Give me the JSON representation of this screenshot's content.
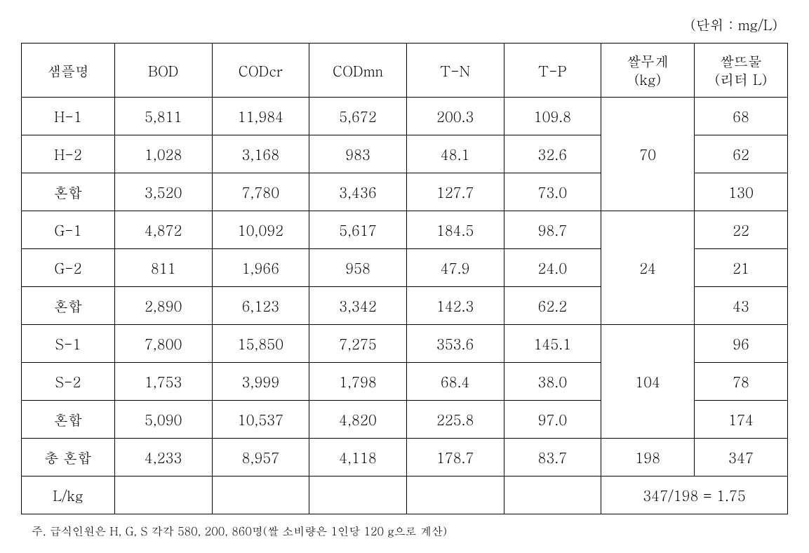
{
  "unit_label": "(단위 : mg/L)",
  "headers": {
    "sample": "샘플명",
    "bod": "BOD",
    "codcr": "CODcr",
    "codmn": "CODmn",
    "tn": "T-N",
    "tp": "T-P",
    "weight_line1": "쌀무게",
    "weight_line2": "(kg)",
    "water_line1": "쌀뜨물",
    "water_line2": "(리터 L)"
  },
  "rows": {
    "h1": {
      "sample": "H-1",
      "bod": "5,811",
      "codcr": "11,984",
      "codmn": "5,672",
      "tn": "200.3",
      "tp": "109.8",
      "water": "68"
    },
    "h2": {
      "sample": "H-2",
      "bod": "1,028",
      "codcr": "3,168",
      "codmn": "983",
      "tn": "48.1",
      "tp": "32.6",
      "water": "62"
    },
    "hmix": {
      "sample": "혼합",
      "bod": "3,520",
      "codcr": "7,780",
      "codmn": "3,436",
      "tn": "127.7",
      "tp": "73.0",
      "water": "130"
    },
    "g1": {
      "sample": "G-1",
      "bod": "4,872",
      "codcr": "10,092",
      "codmn": "5,617",
      "tn": "184.5",
      "tp": "98.7",
      "water": "22"
    },
    "g2": {
      "sample": "G-2",
      "bod": "811",
      "codcr": "1,966",
      "codmn": "958",
      "tn": "47.9",
      "tp": "24.0",
      "water": "21"
    },
    "gmix": {
      "sample": "혼합",
      "bod": "2,890",
      "codcr": "6,123",
      "codmn": "3,342",
      "tn": "142.3",
      "tp": "62.2",
      "water": "43"
    },
    "s1": {
      "sample": "S-1",
      "bod": "7,800",
      "codcr": "15,850",
      "codmn": "7,275",
      "tn": "353.6",
      "tp": "145.1",
      "water": "96"
    },
    "s2": {
      "sample": "S-2",
      "bod": "1,753",
      "codcr": "3,999",
      "codmn": "1,798",
      "tn": "68.4",
      "tp": "38.0",
      "water": "78"
    },
    "smix": {
      "sample": "혼합",
      "bod": "5,090",
      "codcr": "10,537",
      "codmn": "4,820",
      "tn": "225.8",
      "tp": "97.0",
      "water": "174"
    },
    "total": {
      "sample": "총 혼합",
      "bod": "4,233",
      "codcr": "8,957",
      "codmn": "4,118",
      "tn": "178.7",
      "tp": "83.7",
      "weight": "198",
      "water": "347"
    },
    "lkg": {
      "sample": "L/kg",
      "calc": "347/198 = 1.75"
    }
  },
  "weights": {
    "h": "70",
    "g": "24",
    "s": "104"
  },
  "footnote": "주. 급식인원은 H, G, S 각각 580, 200, 860명(쌀 소비량은 1인당 120 g으로 계산)"
}
